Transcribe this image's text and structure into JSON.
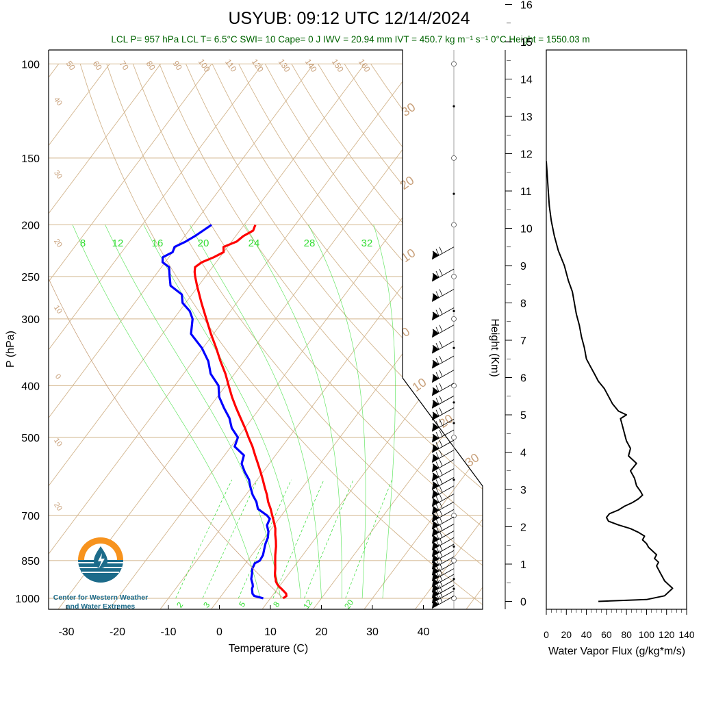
{
  "title": "USYUB: 09:12 UTC 12/14/2024",
  "info_line": "LCL P= 957 hPa  LCL T= 6.5°C  SWI= 10  Cape= 0 J  IWV = 20.94 mm  IVT = 450.7 kg m⁻¹ s⁻¹  0°C Height = 1550.03 m",
  "colors": {
    "temperature": "#ff0000",
    "dewpoint": "#0000ff",
    "isotherm_dryadiabat": "#d2b48c",
    "mixing_ratio": "#33dd33",
    "moist_adiabat": "#33dd33",
    "text_info": "#006400"
  },
  "logo": {
    "icon": "water-drop-sun-icon",
    "line1": "Center for Western Weather",
    "line2": "and Water Extremes"
  },
  "chart_data": [
    {
      "type": "line",
      "name": "skew-t-log-p",
      "xlabel": "Temperature (C)",
      "ylabel": "P (hPa)",
      "xlim": [
        -35,
        50
      ],
      "ylim": [
        1050,
        100
      ],
      "y_scale": "log",
      "x_ticks": [
        "-30",
        "-20",
        "-10",
        "0",
        "10",
        "20",
        "30",
        "40"
      ],
      "x_tick_values": [
        -30,
        -20,
        -10,
        0,
        10,
        20,
        30,
        40
      ],
      "y_ticks": [
        "100",
        "150",
        "200",
        "250",
        "300",
        "400",
        "500",
        "700",
        "850",
        "1000"
      ],
      "y_tick_values": [
        100,
        150,
        200,
        250,
        300,
        400,
        500,
        700,
        850,
        1000
      ],
      "isotherm_labels": [
        {
          "label": "40",
          "t": -40
        },
        {
          "label": "30",
          "t": -30
        },
        {
          "label": "20",
          "t": -20
        },
        {
          "label": "10",
          "t": -10
        },
        {
          "label": "0",
          "t": 0
        },
        {
          "label": "10",
          "t": 10
        },
        {
          "label": "20",
          "t": 20
        },
        {
          "label": "30",
          "t": 30
        }
      ],
      "dry_adiabat_labels": [
        "50",
        "60",
        "70",
        "80",
        "90",
        "100",
        "110",
        "120",
        "130",
        "140",
        "150",
        "160"
      ],
      "dry_adiabat_theta_c": [
        50,
        60,
        70,
        80,
        90,
        100,
        110,
        120,
        130,
        140,
        150,
        160
      ],
      "right_labels": [
        {
          "label": "30",
          "t": 30
        },
        {
          "label": "20",
          "t": 20
        },
        {
          "label": "10",
          "t": 10
        },
        {
          "label": "0",
          "t": 0
        },
        {
          "label": "10",
          "t": -10
        },
        {
          "label": "20",
          "t": -20
        },
        {
          "label": "30",
          "t": -30
        }
      ],
      "moist_adiabat_labels": [
        "8",
        "12",
        "16",
        "20",
        "24",
        "28",
        "32"
      ],
      "moist_adiabat_values": [
        8,
        12,
        16,
        20,
        24,
        28,
        32
      ],
      "mixing_ratio_labels": [
        "2",
        "3",
        "5",
        "8",
        "12",
        "20"
      ],
      "mixing_ratio_values": [
        2,
        3,
        5,
        8,
        12,
        20
      ],
      "series": [
        {
          "name": "Temperature",
          "pressure": [
            1000,
            990,
            980,
            970,
            960,
            950,
            940,
            930,
            920,
            910,
            900,
            880,
            860,
            850,
            830,
            800,
            780,
            760,
            740,
            720,
            700,
            680,
            660,
            640,
            620,
            600,
            580,
            560,
            540,
            520,
            500,
            480,
            460,
            440,
            420,
            400,
            380,
            360,
            340,
            320,
            300,
            280,
            260,
            250,
            245,
            240,
            235,
            230,
            225,
            220,
            215,
            210,
            205,
            200
          ],
          "temperature": [
            12.5,
            12.8,
            12.4,
            11.6,
            10.8,
            9.9,
            9.2,
            8.6,
            8.2,
            7.7,
            7.3,
            6.6,
            5.8,
            5.4,
            4.6,
            3.5,
            2.6,
            1.6,
            0.7,
            -0.5,
            -1.8,
            -3.1,
            -4.6,
            -5.9,
            -7.4,
            -8.9,
            -10.5,
            -12.2,
            -14.0,
            -15.8,
            -17.9,
            -20.0,
            -22.3,
            -24.7,
            -27.1,
            -29.4,
            -31.8,
            -34.6,
            -37.4,
            -40.5,
            -43.6,
            -46.9,
            -50.3,
            -52.0,
            -52.8,
            -53.4,
            -52.8,
            -51.2,
            -50.0,
            -50.8,
            -49.0,
            -48.5,
            -47.4,
            -47.8
          ]
        },
        {
          "name": "Dewpoint",
          "pressure": [
            1000,
            990,
            980,
            970,
            960,
            950,
            940,
            930,
            920,
            900,
            880,
            860,
            850,
            830,
            810,
            790,
            770,
            750,
            730,
            710,
            700,
            680,
            660,
            640,
            620,
            600,
            580,
            560,
            540,
            520,
            500,
            480,
            460,
            440,
            420,
            400,
            380,
            360,
            340,
            320,
            300,
            290,
            280,
            270,
            260,
            250,
            240,
            235,
            230,
            225,
            220,
            215,
            210,
            205,
            200
          ],
          "temperature": [
            8.6,
            6.5,
            5.8,
            5.4,
            5.0,
            4.8,
            4.4,
            3.9,
            3.4,
            2.8,
            2.1,
            1.8,
            2.4,
            2.2,
            1.6,
            1.0,
            0.6,
            -0.2,
            -1.4,
            -1.8,
            -2.8,
            -5.6,
            -6.9,
            -8.7,
            -10.2,
            -11.6,
            -13.6,
            -15.4,
            -16.2,
            -19.3,
            -20.0,
            -22.6,
            -24.5,
            -27.1,
            -29.6,
            -31.4,
            -34.7,
            -37.0,
            -40.2,
            -44.4,
            -46.3,
            -48.0,
            -50.6,
            -52.0,
            -55.5,
            -57.0,
            -58.5,
            -60.5,
            -61.2,
            -60.0,
            -60.4,
            -59.0,
            -58.0,
            -57.2,
            -56.4
          ]
        }
      ]
    },
    {
      "type": "line",
      "name": "water-vapor-flux",
      "xlabel": "Water Vapor Flux (g/kg*m/s)",
      "ylabel": "Height (Km)",
      "xlim": [
        0,
        140
      ],
      "ylim": [
        -0.2,
        16.3
      ],
      "x_ticks": [
        "0",
        "20",
        "40",
        "60",
        "80",
        "100",
        "120",
        "140"
      ],
      "x_tick_values": [
        0,
        20,
        40,
        60,
        80,
        100,
        120,
        140
      ],
      "y_ticks": [
        "0",
        "1",
        "2",
        "3",
        "4",
        "5",
        "6",
        "7",
        "8",
        "9",
        "10",
        "11",
        "12",
        "13",
        "14",
        "15",
        "16"
      ],
      "y_tick_values": [
        0,
        1,
        2,
        3,
        4,
        5,
        6,
        7,
        8,
        9,
        10,
        11,
        12,
        13,
        14,
        15,
        16
      ],
      "series": [
        {
          "name": "Water Vapor Flux",
          "height": [
            0.0,
            0.05,
            0.15,
            0.25,
            0.35,
            0.45,
            0.55,
            0.65,
            0.75,
            0.85,
            0.95,
            1.05,
            1.15,
            1.25,
            1.35,
            1.45,
            1.55,
            1.65,
            1.75,
            1.85,
            1.95,
            2.05,
            2.15,
            2.25,
            2.35,
            2.45,
            2.55,
            2.65,
            2.75,
            2.85,
            2.95,
            3.1,
            3.3,
            3.5,
            3.7,
            3.9,
            4.1,
            4.3,
            4.5,
            4.7,
            4.9,
            5.0,
            5.1,
            5.3,
            5.5,
            5.7,
            5.9,
            6.1,
            6.3,
            6.5,
            6.8,
            7.1,
            7.4,
            7.7,
            8.0,
            8.3,
            8.6,
            9.0,
            9.4,
            9.8,
            10.2,
            10.6,
            11.0,
            11.4,
            11.8
          ],
          "flux": [
            52,
            100,
            118,
            122,
            126,
            122,
            118,
            116,
            114,
            112,
            110,
            112,
            108,
            110,
            106,
            102,
            100,
            96,
            98,
            92,
            84,
            72,
            62,
            60,
            63,
            72,
            78,
            86,
            92,
            96,
            94,
            90,
            88,
            84,
            90,
            82,
            84,
            80,
            78,
            76,
            74,
            80,
            72,
            66,
            62,
            58,
            52,
            48,
            44,
            40,
            38,
            35,
            33,
            30,
            28,
            26,
            22,
            18,
            12,
            8,
            5,
            3,
            2,
            1,
            0
          ]
        }
      ]
    }
  ]
}
